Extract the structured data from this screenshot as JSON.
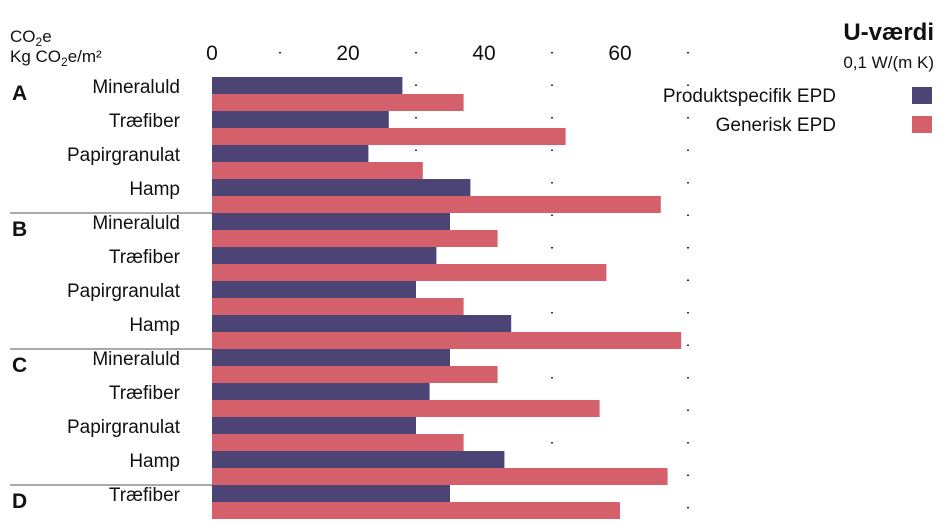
{
  "chart_data": {
    "type": "bar",
    "orientation": "horizontal",
    "title": "U-værdi",
    "subtitle": "0,1 W/(m K)",
    "ylabel_line1": {
      "base": "CO",
      "sub": "2",
      "tail": "e"
    },
    "ylabel_line2": {
      "pre": "Kg CO",
      "sub": "2",
      "tail": "e/m²"
    },
    "xlim": [
      0,
      72
    ],
    "ticks": [
      0,
      20,
      40,
      60
    ],
    "minor_ticks": [
      10,
      30,
      50,
      70
    ],
    "legend_position": "top-right",
    "colors": {
      "Produktspecifik EPD": "#4d4476",
      "Generisk EPD": "#d4606b"
    },
    "series": [
      {
        "name": "Produktspecifik EPD",
        "color": "#4d4476"
      },
      {
        "name": "Generisk EPD",
        "color": "#d4606b"
      }
    ],
    "groups": [
      {
        "label": "A",
        "items": [
          {
            "name": "Mineraluld",
            "values": [
              28,
              37
            ]
          },
          {
            "name": "Træfiber",
            "values": [
              26,
              52
            ]
          },
          {
            "name": "Papirgranulat",
            "values": [
              23,
              31
            ]
          },
          {
            "name": "Hamp",
            "values": [
              38,
              66
            ]
          }
        ]
      },
      {
        "label": "B",
        "items": [
          {
            "name": "Mineraluld",
            "values": [
              35,
              42
            ]
          },
          {
            "name": "Træfiber",
            "values": [
              33,
              58
            ]
          },
          {
            "name": "Papirgranulat",
            "values": [
              30,
              37
            ]
          },
          {
            "name": "Hamp",
            "values": [
              44,
              69
            ]
          }
        ]
      },
      {
        "label": "C",
        "items": [
          {
            "name": "Mineraluld",
            "values": [
              35,
              42
            ]
          },
          {
            "name": "Træfiber",
            "values": [
              32,
              57
            ]
          },
          {
            "name": "Papirgranulat",
            "values": [
              30,
              37
            ]
          },
          {
            "name": "Hamp",
            "values": [
              43,
              67
            ]
          }
        ]
      },
      {
        "label": "D",
        "items": [
          {
            "name": "Træfiber",
            "values": [
              35,
              60
            ]
          }
        ]
      }
    ]
  }
}
